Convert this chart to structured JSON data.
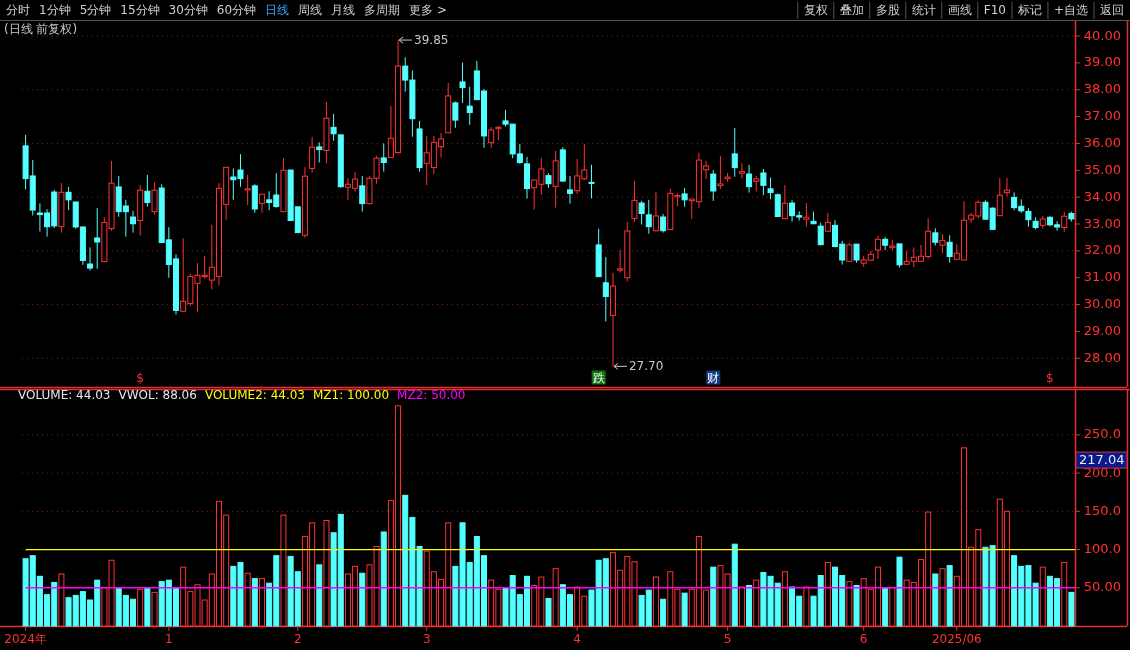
{
  "chart_data": [
    {
      "type": "candlestick",
      "title": "(日线 前复权)",
      "ohlc": [
        [
          35.91,
          36.32,
          34.29,
          34.69
        ],
        [
          34.79,
          35.38,
          33.32,
          33.52
        ],
        [
          33.41,
          33.77,
          32.72,
          33.35
        ],
        [
          33.41,
          33.55,
          32.53,
          32.9
        ],
        [
          34.19,
          34.27,
          32.85,
          32.93
        ],
        [
          32.9,
          34.52,
          32.68,
          34.18
        ],
        [
          34.18,
          34.38,
          33.52,
          33.9
        ],
        [
          33.82,
          33.82,
          32.83,
          32.89
        ],
        [
          32.89,
          32.89,
          31.48,
          31.64
        ],
        [
          31.51,
          32.13,
          31.27,
          31.36
        ],
        [
          32.48,
          33.59,
          31.33,
          32.33
        ],
        [
          31.6,
          33.25,
          31.6,
          33.06
        ],
        [
          32.83,
          35.35,
          32.75,
          34.52
        ],
        [
          34.38,
          34.79,
          33.27,
          33.46
        ],
        [
          33.67,
          33.9,
          32.53,
          33.46
        ],
        [
          33.26,
          33.49,
          32.68,
          33.01
        ],
        [
          33.13,
          34.45,
          32.57,
          34.26
        ],
        [
          34.22,
          34.83,
          33.65,
          33.8
        ],
        [
          33.46,
          34.55,
          33.35,
          34.26
        ],
        [
          34.34,
          34.48,
          32.31,
          32.31
        ],
        [
          32.41,
          32.88,
          31.0,
          31.49
        ],
        [
          31.7,
          31.87,
          29.63,
          29.78
        ],
        [
          29.75,
          32.47,
          29.75,
          30.12
        ],
        [
          30.04,
          31.14,
          29.95,
          31.05
        ],
        [
          30.79,
          31.54,
          29.74,
          31.09
        ],
        [
          31.04,
          31.81,
          30.97,
          31.09
        ],
        [
          30.91,
          32.97,
          30.57,
          31.39
        ],
        [
          31.05,
          34.52,
          30.71,
          34.33
        ],
        [
          33.73,
          35.11,
          33.16,
          35.11
        ],
        [
          34.75,
          35.07,
          33.9,
          34.65
        ],
        [
          35.01,
          35.6,
          34.39,
          34.69
        ],
        [
          34.27,
          34.83,
          33.71,
          34.31
        ],
        [
          34.42,
          34.48,
          33.42,
          33.56
        ],
        [
          33.77,
          34.12,
          33.42,
          34.11
        ],
        [
          33.9,
          34.22,
          33.52,
          33.8
        ],
        [
          34.08,
          34.89,
          33.61,
          33.65
        ],
        [
          33.46,
          35.46,
          33.46,
          35.0
        ],
        [
          35.01,
          35.01,
          33.13,
          33.13
        ],
        [
          33.64,
          33.64,
          32.68,
          32.68
        ],
        [
          32.58,
          35.12,
          32.49,
          34.78
        ],
        [
          35.07,
          36.24,
          34.91,
          35.86
        ],
        [
          35.87,
          36.04,
          35.29,
          35.77
        ],
        [
          35.74,
          37.54,
          35.26,
          36.94
        ],
        [
          36.6,
          37.1,
          36.1,
          36.36
        ],
        [
          36.32,
          36.32,
          34.35,
          34.39
        ],
        [
          34.37,
          34.7,
          33.9,
          34.48
        ],
        [
          34.33,
          34.93,
          34.21,
          34.67
        ],
        [
          34.42,
          34.79,
          33.46,
          33.76
        ],
        [
          33.76,
          34.79,
          33.72,
          34.7
        ],
        [
          34.7,
          35.53,
          34.5,
          35.45
        ],
        [
          35.46,
          36.0,
          34.95,
          35.29
        ],
        [
          35.48,
          37.39,
          35.48,
          36.19
        ],
        [
          35.66,
          39.85,
          35.6,
          38.88
        ],
        [
          38.88,
          39.21,
          37.93,
          38.36
        ],
        [
          38.36,
          38.72,
          36.25,
          36.92
        ],
        [
          36.54,
          36.84,
          34.95,
          35.1
        ],
        [
          35.26,
          36.28,
          34.45,
          35.65
        ],
        [
          35.1,
          36.28,
          34.86,
          36.04
        ],
        [
          35.88,
          36.39,
          35.47,
          36.17
        ],
        [
          36.4,
          38.25,
          36.4,
          37.77
        ],
        [
          37.51,
          37.56,
          36.58,
          36.87
        ],
        [
          38.29,
          39.01,
          37.51,
          38.08
        ],
        [
          37.39,
          38.11,
          36.69,
          37.15
        ],
        [
          38.7,
          39.07,
          37.63,
          37.63
        ],
        [
          37.95,
          38.03,
          35.84,
          36.28
        ],
        [
          36.03,
          36.61,
          35.84,
          36.5
        ],
        [
          36.55,
          36.65,
          36.13,
          36.6
        ],
        [
          36.84,
          37.25,
          36.63,
          36.72
        ],
        [
          36.72,
          36.72,
          35.45,
          35.61
        ],
        [
          35.61,
          35.98,
          35.24,
          35.29
        ],
        [
          35.24,
          35.5,
          33.95,
          34.32
        ],
        [
          34.35,
          34.64,
          33.54,
          34.64
        ],
        [
          34.48,
          35.46,
          34.09,
          35.05
        ],
        [
          34.8,
          34.89,
          34.35,
          34.5
        ],
        [
          34.4,
          35.72,
          33.61,
          35.35
        ],
        [
          35.76,
          35.86,
          34.57,
          34.6
        ],
        [
          34.27,
          34.79,
          33.76,
          34.14
        ],
        [
          34.24,
          35.42,
          34.12,
          34.79
        ],
        [
          34.68,
          35.98,
          34.64,
          35.01
        ],
        [
          34.55,
          35.2,
          33.95,
          34.52
        ],
        [
          32.22,
          32.82,
          31.04,
          31.04
        ],
        [
          30.81,
          31.77,
          29.37,
          30.3
        ],
        [
          29.6,
          31.18,
          27.7,
          30.69
        ],
        [
          31.28,
          32.04,
          31.19,
          31.33
        ],
        [
          31.0,
          33.08,
          30.86,
          32.74
        ],
        [
          33.21,
          34.6,
          33.08,
          33.88
        ],
        [
          33.78,
          33.86,
          32.98,
          33.39
        ],
        [
          33.34,
          33.9,
          32.64,
          32.9
        ],
        [
          32.75,
          34.19,
          32.72,
          33.3
        ],
        [
          33.26,
          33.37,
          32.68,
          32.75
        ],
        [
          32.79,
          34.31,
          32.79,
          34.14
        ],
        [
          34.01,
          34.14,
          33.67,
          34.06
        ],
        [
          34.12,
          34.34,
          33.64,
          33.9
        ],
        [
          33.87,
          33.93,
          33.19,
          33.93
        ],
        [
          33.83,
          35.65,
          33.6,
          35.38
        ],
        [
          35.02,
          35.35,
          34.68,
          35.16
        ],
        [
          34.86,
          35.01,
          33.86,
          34.23
        ],
        [
          34.43,
          35.53,
          34.31,
          34.49
        ],
        [
          34.69,
          34.9,
          34.57,
          34.75
        ],
        [
          35.61,
          36.58,
          34.76,
          35.1
        ],
        [
          34.89,
          35.26,
          34.7,
          34.95
        ],
        [
          34.86,
          35.2,
          34.17,
          34.39
        ],
        [
          34.59,
          34.8,
          34.21,
          34.68
        ],
        [
          34.9,
          35.05,
          34.07,
          34.44
        ],
        [
          34.31,
          34.73,
          33.92,
          34.17
        ],
        [
          34.09,
          34.14,
          33.28,
          33.28
        ],
        [
          33.2,
          34.45,
          33.18,
          33.77
        ],
        [
          33.78,
          33.88,
          33.09,
          33.31
        ],
        [
          33.31,
          33.47,
          33.13,
          33.26
        ],
        [
          33.18,
          33.78,
          32.9,
          33.25
        ],
        [
          33.1,
          33.46,
          32.99,
          33.01
        ],
        [
          32.92,
          33.05,
          32.21,
          32.23
        ],
        [
          32.73,
          33.41,
          32.73,
          33.06
        ],
        [
          32.95,
          33.14,
          32.13,
          32.16
        ],
        [
          32.25,
          32.37,
          31.49,
          31.66
        ],
        [
          31.61,
          32.3,
          31.61,
          32.22
        ],
        [
          32.25,
          32.25,
          31.56,
          31.66
        ],
        [
          31.54,
          31.81,
          31.4,
          31.66
        ],
        [
          31.65,
          32.0,
          31.65,
          31.87
        ],
        [
          32.03,
          32.56,
          31.7,
          32.43
        ],
        [
          32.43,
          32.51,
          32.03,
          32.21
        ],
        [
          32.12,
          32.41,
          32.03,
          32.18
        ],
        [
          32.26,
          32.26,
          31.38,
          31.48
        ],
        [
          31.5,
          32.0,
          31.5,
          31.61
        ],
        [
          31.61,
          32.13,
          31.4,
          31.76
        ],
        [
          31.61,
          32.22,
          31.58,
          31.8
        ],
        [
          31.79,
          33.21,
          31.71,
          32.73
        ],
        [
          32.67,
          32.84,
          32.2,
          32.32
        ],
        [
          32.21,
          32.62,
          31.91,
          32.39
        ],
        [
          32.32,
          32.58,
          31.56,
          31.79
        ],
        [
          31.69,
          32.25,
          31.66,
          31.91
        ],
        [
          31.66,
          33.85,
          31.66,
          33.14
        ],
        [
          33.18,
          33.42,
          33.05,
          33.33
        ],
        [
          33.3,
          33.88,
          33.21,
          33.81
        ],
        [
          33.81,
          33.88,
          33.15,
          33.18
        ],
        [
          33.59,
          33.62,
          32.78,
          32.8
        ],
        [
          33.31,
          34.71,
          33.31,
          34.07
        ],
        [
          34.17,
          34.71,
          34.02,
          34.26
        ],
        [
          33.99,
          34.18,
          33.51,
          33.61
        ],
        [
          33.66,
          33.92,
          33.42,
          33.49
        ],
        [
          33.47,
          33.59,
          32.9,
          33.16
        ],
        [
          33.1,
          33.25,
          32.8,
          32.87
        ],
        [
          32.95,
          33.3,
          32.83,
          33.19
        ],
        [
          33.25,
          33.29,
          32.92,
          32.97
        ],
        [
          32.97,
          33.1,
          32.75,
          32.89
        ],
        [
          32.87,
          33.46,
          32.7,
          33.29
        ],
        [
          33.39,
          33.46,
          33.09,
          33.19
        ]
      ],
      "colors": [
        "#54ffff",
        "#54ffff",
        "#54ffff",
        "#54ffff",
        "#54ffff",
        "#ff3232",
        "#54ffff",
        "#54ffff",
        "#54ffff",
        "#54ffff",
        "#54ffff",
        "#ff3232",
        "#ff3232",
        "#54ffff",
        "#54ffff",
        "#54ffff",
        "#ff3232",
        "#54ffff",
        "#ff3232",
        "#54ffff",
        "#54ffff",
        "#54ffff",
        "#ff3232",
        "#ff3232",
        "#ff3232",
        "#ff3232",
        "#ff3232",
        "#ff3232",
        "#ff3232",
        "#54ffff",
        "#54ffff",
        "#ff3232",
        "#54ffff",
        "#ff3232",
        "#54ffff",
        "#54ffff",
        "#ff3232",
        "#54ffff",
        "#54ffff",
        "#ff3232",
        "#ff3232",
        "#54ffff",
        "#ff3232",
        "#54ffff",
        "#54ffff",
        "#ff3232",
        "#ff3232",
        "#54ffff",
        "#ff3232",
        "#ff3232",
        "#54ffff",
        "#ff3232",
        "#ff3232",
        "#54ffff",
        "#54ffff",
        "#54ffff",
        "#ff3232",
        "#ff3232",
        "#ff3232",
        "#ff3232",
        "#54ffff",
        "#54ffff",
        "#54ffff",
        "#54ffff",
        "#54ffff",
        "#ff3232",
        "#ff3232",
        "#54ffff",
        "#54ffff",
        "#54ffff",
        "#54ffff",
        "#ff3232",
        "#ff3232",
        "#54ffff",
        "#ff3232",
        "#54ffff",
        "#54ffff",
        "#ff3232",
        "#ff3232",
        "#54ffff",
        "#54ffff",
        "#54ffff",
        "#ff3232",
        "#ff3232",
        "#ff3232",
        "#ff3232",
        "#54ffff",
        "#54ffff",
        "#ff3232",
        "#54ffff",
        "#ff3232",
        "#ff3232",
        "#54ffff",
        "#ff3232",
        "#ff3232",
        "#ff3232",
        "#54ffff",
        "#ff3232",
        "#ff3232",
        "#54ffff",
        "#ff3232",
        "#54ffff",
        "#ff3232",
        "#54ffff",
        "#54ffff",
        "#54ffff",
        "#ff3232",
        "#54ffff",
        "#54ffff",
        "#ff3232",
        "#54ffff",
        "#54ffff",
        "#ff3232",
        "#54ffff",
        "#54ffff",
        "#ff3232",
        "#54ffff",
        "#ff3232",
        "#ff3232",
        "#ff3232",
        "#54ffff",
        "#ff3232",
        "#54ffff",
        "#ff3232",
        "#ff3232",
        "#ff3232",
        "#ff3232",
        "#54ffff",
        "#ff3232",
        "#54ffff",
        "#ff3232",
        "#ff3232",
        "#ff3232",
        "#ff3232",
        "#54ffff",
        "#54ffff",
        "#ff3232",
        "#ff3232",
        "#54ffff",
        "#54ffff",
        "#54ffff",
        "#54ffff",
        "#ff3232",
        "#54ffff",
        "#54ffff",
        "#ff3232",
        "#54ffff"
      ],
      "ylim": [
        26.93,
        40.56
      ],
      "yticks": [
        {
          "value": 28,
          "label": "28.00"
        },
        {
          "value": 29,
          "label": "29.00"
        },
        {
          "value": 30,
          "label": "30.00"
        },
        {
          "value": 31,
          "label": "31.00"
        },
        {
          "value": 32,
          "label": "32.00"
        },
        {
          "value": 33,
          "label": "33.00"
        },
        {
          "value": 34,
          "label": "34.00"
        },
        {
          "value": 35,
          "label": "35.00"
        },
        {
          "value": 36,
          "label": "36.00"
        },
        {
          "value": 37,
          "label": "37.00"
        },
        {
          "value": 38,
          "label": "38.00"
        },
        {
          "value": 39,
          "label": "39.00"
        },
        {
          "value": 40,
          "label": "40.00"
        }
      ],
      "grid": "y",
      "tick_labels": "y",
      "annotations": [
        "分时",
        "1分钟",
        "5分钟",
        "15分钟",
        "30分钟",
        "60分钟",
        "日线",
        "周线",
        "月线",
        "多周期",
        "更多 >",
        "复权",
        "叠加",
        "多股",
        "统计",
        "画线",
        "F10",
        "标记",
        "+自选",
        "返回",
        "$",
        "跌",
        "财",
        "$",
        "39.85",
        "27.70"
      ]
    },
    {
      "type": "bar",
      "categories": [
        "2024年",
        null,
        null,
        null,
        null,
        null,
        null,
        null,
        null,
        null,
        null,
        null,
        null,
        null,
        null,
        null,
        null,
        null,
        null,
        null,
        "1",
        null,
        null,
        null,
        null,
        null,
        null,
        null,
        null,
        null,
        null,
        null,
        null,
        null,
        null,
        null,
        null,
        null,
        "2",
        null,
        null,
        null,
        null,
        null,
        null,
        null,
        null,
        null,
        null,
        null,
        null,
        null,
        null,
        null,
        null,
        null,
        "3",
        null,
        null,
        null,
        null,
        null,
        null,
        null,
        null,
        null,
        null,
        null,
        null,
        null,
        null,
        null,
        null,
        null,
        null,
        null,
        null,
        "4",
        null,
        null,
        null,
        null,
        null,
        null,
        null,
        null,
        null,
        null,
        null,
        null,
        null,
        null,
        null,
        null,
        null,
        null,
        null,
        null,
        "5",
        null,
        null,
        null,
        null,
        null,
        null,
        null,
        null,
        null,
        null,
        null,
        null,
        null,
        null,
        null,
        null,
        null,
        null,
        "6",
        null,
        null,
        null,
        null,
        null,
        null,
        null,
        null,
        null,
        null,
        null,
        null,
        "2025/06",
        null,
        null,
        null,
        null,
        null,
        null,
        null,
        null,
        null,
        null,
        null,
        null,
        null,
        null,
        null,
        null
      ],
      "values": [
        88,
        92,
        65,
        41,
        57,
        68,
        37,
        40,
        45,
        34,
        60,
        50,
        86,
        50,
        40,
        35,
        48,
        50,
        44,
        58,
        60,
        50,
        77,
        45,
        54,
        34,
        68,
        163,
        145,
        78,
        83,
        69,
        62,
        62,
        56,
        92,
        145,
        91,
        71,
        117,
        135,
        80,
        138,
        122,
        146,
        68,
        78,
        69,
        80,
        104,
        123,
        164,
        288,
        171,
        142,
        104,
        98,
        71,
        61,
        135,
        78,
        135,
        83,
        117,
        92,
        60,
        48,
        50,
        66,
        41,
        65,
        53,
        64,
        36,
        75,
        54,
        41,
        51,
        39,
        47,
        86,
        88,
        96,
        73,
        91,
        84,
        40,
        47,
        64,
        35,
        71,
        48,
        43,
        48,
        117,
        47,
        77,
        79,
        68,
        107,
        51,
        53,
        60,
        70,
        65,
        56,
        71,
        51,
        39,
        51,
        39,
        66,
        83,
        77,
        66,
        58,
        53,
        62,
        48,
        77,
        50,
        50,
        90,
        60,
        57,
        87,
        149,
        68,
        75,
        79,
        65,
        233,
        103,
        126,
        103,
        105,
        166,
        150,
        92,
        78,
        79,
        56,
        77,
        65,
        62,
        83,
        44.03
      ],
      "colors": [
        "#54ffff",
        "#54ffff",
        "#54ffff",
        "#54ffff",
        "#54ffff",
        "#ff3232",
        "#54ffff",
        "#54ffff",
        "#54ffff",
        "#54ffff",
        "#54ffff",
        "#ff3232",
        "#ff3232",
        "#54ffff",
        "#54ffff",
        "#54ffff",
        "#ff3232",
        "#54ffff",
        "#ff3232",
        "#54ffff",
        "#54ffff",
        "#54ffff",
        "#ff3232",
        "#ff3232",
        "#ff3232",
        "#ff3232",
        "#ff3232",
        "#ff3232",
        "#ff3232",
        "#54ffff",
        "#54ffff",
        "#ff3232",
        "#54ffff",
        "#ff3232",
        "#54ffff",
        "#54ffff",
        "#ff3232",
        "#54ffff",
        "#54ffff",
        "#ff3232",
        "#ff3232",
        "#54ffff",
        "#ff3232",
        "#54ffff",
        "#54ffff",
        "#ff3232",
        "#ff3232",
        "#54ffff",
        "#ff3232",
        "#ff3232",
        "#54ffff",
        "#ff3232",
        "#ff3232",
        "#54ffff",
        "#54ffff",
        "#54ffff",
        "#ff3232",
        "#ff3232",
        "#ff3232",
        "#ff3232",
        "#54ffff",
        "#54ffff",
        "#54ffff",
        "#54ffff",
        "#54ffff",
        "#ff3232",
        "#ff3232",
        "#54ffff",
        "#54ffff",
        "#54ffff",
        "#54ffff",
        "#ff3232",
        "#ff3232",
        "#54ffff",
        "#ff3232",
        "#54ffff",
        "#54ffff",
        "#ff3232",
        "#ff3232",
        "#54ffff",
        "#54ffff",
        "#54ffff",
        "#ff3232",
        "#ff3232",
        "#ff3232",
        "#ff3232",
        "#54ffff",
        "#54ffff",
        "#ff3232",
        "#54ffff",
        "#ff3232",
        "#ff3232",
        "#54ffff",
        "#ff3232",
        "#ff3232",
        "#ff3232",
        "#54ffff",
        "#ff3232",
        "#ff3232",
        "#54ffff",
        "#ff3232",
        "#54ffff",
        "#ff3232",
        "#54ffff",
        "#54ffff",
        "#54ffff",
        "#ff3232",
        "#54ffff",
        "#54ffff",
        "#ff3232",
        "#54ffff",
        "#54ffff",
        "#ff3232",
        "#54ffff",
        "#54ffff",
        "#ff3232",
        "#54ffff",
        "#ff3232",
        "#ff3232",
        "#ff3232",
        "#54ffff",
        "#ff3232",
        "#54ffff",
        "#ff3232",
        "#ff3232",
        "#ff3232",
        "#ff3232",
        "#54ffff",
        "#ff3232",
        "#54ffff",
        "#ff3232",
        "#ff3232",
        "#ff3232",
        "#ff3232",
        "#54ffff",
        "#54ffff",
        "#ff3232",
        "#ff3232",
        "#54ffff",
        "#54ffff",
        "#54ffff",
        "#54ffff",
        "#ff3232",
        "#54ffff",
        "#54ffff",
        "#ff3232",
        "#54ffff"
      ],
      "ylim": [
        0,
        310
      ],
      "yticks": [
        {
          "value": 50,
          "label": "50.00"
        },
        {
          "value": 100,
          "label": "100.0"
        },
        {
          "value": 150,
          "label": "150.0"
        },
        {
          "value": 200,
          "label": "200.0"
        },
        {
          "value": 250,
          "label": "250.0"
        }
      ],
      "grid": "y",
      "ref_lines": [
        {
          "axis": "y",
          "value": 100,
          "label": "MZ1: 100.00",
          "color": "#ffff00"
        },
        {
          "axis": "y",
          "value": 50,
          "label": "MZ2: 50.00",
          "color": "#ff00ff"
        }
      ],
      "annotations": [
        "VOLUME: 44.03",
        "VWOL: 88.06",
        "VOLUME2: 44.03",
        "217.04"
      ]
    }
  ]
}
